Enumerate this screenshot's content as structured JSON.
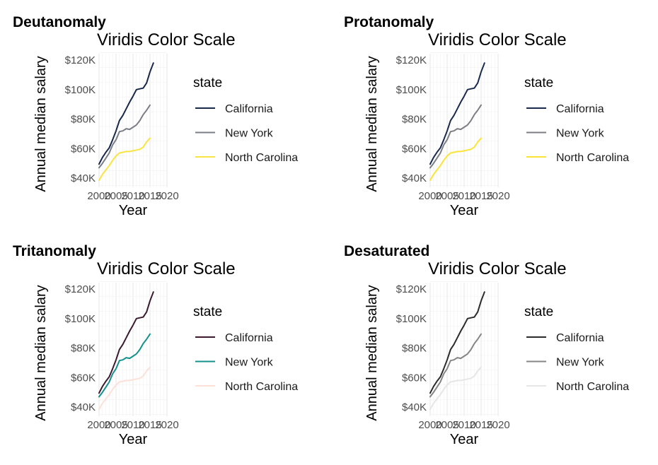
{
  "chart_data": [
    {
      "type": "line",
      "panel_label": "Deutanomaly",
      "title": "Viridis Color Scale",
      "xlabel": "Year",
      "ylabel": "Annual median salary",
      "x_ticks": [
        "2000",
        "2005",
        "2010",
        "2015",
        "2020"
      ],
      "y_ticks": [
        "$40K",
        "$60K",
        "$80K",
        "$100K",
        "$120K"
      ],
      "legend_title": "state",
      "legend_position": "right",
      "grid": true,
      "xlim": [
        2000,
        2020
      ],
      "ylim": [
        40000,
        120000
      ],
      "series": [
        {
          "name": "California",
          "color": "#18284a"
        },
        {
          "name": "New York",
          "color": "#7b7d87"
        },
        {
          "name": "North Carolina",
          "color": "#f8e443"
        }
      ]
    },
    {
      "type": "line",
      "panel_label": "Protanomaly",
      "title": "Viridis Color Scale",
      "xlabel": "Year",
      "ylabel": "Annual median salary",
      "x_ticks": [
        "2000",
        "2005",
        "2010",
        "2015",
        "2020"
      ],
      "y_ticks": [
        "$40K",
        "$60K",
        "$80K",
        "$100K",
        "$120K"
      ],
      "legend_title": "state",
      "legend_position": "right",
      "grid": true,
      "xlim": [
        2000,
        2020
      ],
      "ylim": [
        40000,
        120000
      ],
      "series": [
        {
          "name": "California",
          "color": "#1a2a4e"
        },
        {
          "name": "New York",
          "color": "#7d7e84"
        },
        {
          "name": "North Carolina",
          "color": "#fbe438"
        }
      ]
    },
    {
      "type": "line",
      "panel_label": "Tritanomaly",
      "title": "Viridis Color Scale",
      "xlabel": "Year",
      "ylabel": "Annual median salary",
      "x_ticks": [
        "2000",
        "2005",
        "2010",
        "2015",
        "2020"
      ],
      "y_ticks": [
        "$40K",
        "$60K",
        "$80K",
        "$100K",
        "$120K"
      ],
      "legend_title": "state",
      "legend_position": "right",
      "grid": true,
      "xlim": [
        2000,
        2020
      ],
      "ylim": [
        40000,
        120000
      ],
      "series": [
        {
          "name": "California",
          "color": "#3b1a2e"
        },
        {
          "name": "New York",
          "color": "#14918d"
        },
        {
          "name": "North Carolina",
          "color": "#fde0d8"
        }
      ]
    },
    {
      "type": "line",
      "panel_label": "Desaturated",
      "title": "Viridis Color Scale",
      "xlabel": "Year",
      "ylabel": "Annual median salary",
      "x_ticks": [
        "2000",
        "2005",
        "2010",
        "2015",
        "2020"
      ],
      "y_ticks": [
        "$40K",
        "$60K",
        "$80K",
        "$100K",
        "$120K"
      ],
      "legend_title": "state",
      "legend_position": "right",
      "grid": true,
      "xlim": [
        2000,
        2020
      ],
      "ylim": [
        40000,
        120000
      ],
      "series": [
        {
          "name": "California",
          "color": "#2b2b2b"
        },
        {
          "name": "New York",
          "color": "#858585"
        },
        {
          "name": "North Carolina",
          "color": "#e6e6e6"
        }
      ]
    }
  ],
  "series_values": {
    "x": [
      2000,
      2001,
      2002,
      2003,
      2004,
      2005,
      2006,
      2007,
      2008,
      2009,
      2010,
      2011,
      2012,
      2013,
      2014,
      2015,
      2016,
      2017,
      2018,
      2019,
      2020
    ],
    "California": [
      49500,
      54000,
      57500,
      60500,
      66000,
      72000,
      79000,
      82500,
      87000,
      91500,
      95500,
      100000,
      100500,
      101000,
      104500,
      112000,
      118000,
      null,
      null,
      null,
      null
    ],
    "New York": [
      47000,
      50000,
      53500,
      57000,
      62500,
      66000,
      71500,
      72000,
      73500,
      73000,
      74500,
      76000,
      79000,
      83000,
      86000,
      89500,
      null,
      null,
      null,
      null,
      null
    ],
    "North Carolina": [
      38500,
      42500,
      45500,
      48500,
      52000,
      55000,
      57000,
      57500,
      58000,
      58000,
      58500,
      59000,
      59500,
      61000,
      64500,
      67000,
      null,
      null,
      null,
      null,
      null
    ]
  }
}
